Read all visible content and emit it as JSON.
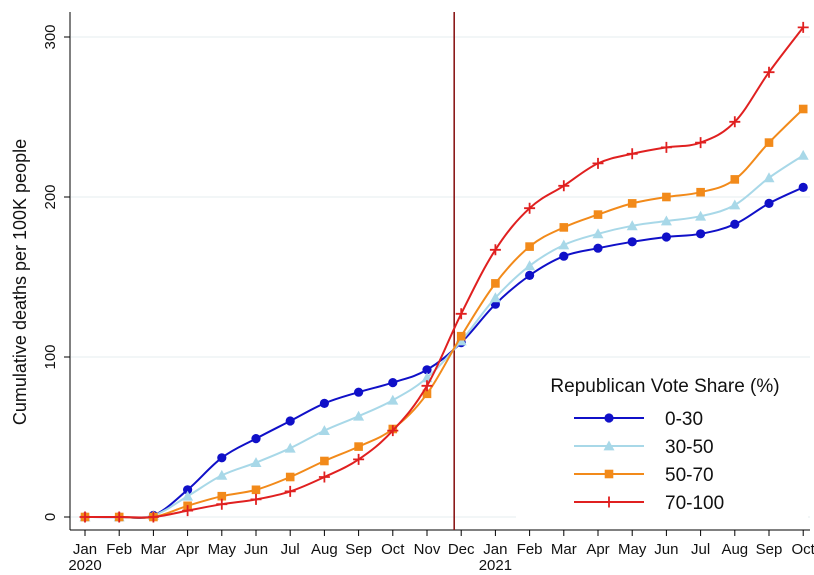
{
  "chart_data": {
    "type": "line",
    "title": "",
    "xlabel": "",
    "ylabel": "Cumulative deaths per 100K people",
    "ylim": [
      0,
      300
    ],
    "yticks": [
      "0",
      "100",
      "200",
      "300"
    ],
    "categories": [
      "Jan",
      "Feb",
      "Mar",
      "Apr",
      "May",
      "Jun",
      "Jul",
      "Aug",
      "Sep",
      "Oct",
      "Nov",
      "Dec",
      "Jan",
      "Feb",
      "Mar",
      "Apr",
      "May",
      "Jun",
      "Jul",
      "Aug",
      "Sep",
      "Oct"
    ],
    "year_labels": [
      {
        "index": 0,
        "label": "2020"
      },
      {
        "index": 12,
        "label": "2021"
      }
    ],
    "grid": true,
    "vertical_marker": {
      "category_index": 11,
      "color": "#8b1a1a"
    },
    "legend": {
      "title": "Republican Vote Share (%)",
      "placement": "bottom-right"
    },
    "series": [
      {
        "name": "0-30",
        "color": "#1010c8",
        "marker": "circle",
        "values": [
          0,
          0,
          1,
          17,
          37,
          49,
          60,
          71,
          78,
          84,
          92,
          109,
          133,
          151,
          163,
          168,
          172,
          175,
          177,
          183,
          196,
          206
        ]
      },
      {
        "name": "30-50",
        "color": "#a8d8e8",
        "marker": "triangle",
        "values": [
          0,
          0,
          1,
          13,
          26,
          34,
          43,
          54,
          63,
          73,
          87,
          110,
          137,
          157,
          170,
          177,
          182,
          185,
          188,
          195,
          212,
          226
        ]
      },
      {
        "name": "50-70",
        "color": "#f28a1a",
        "marker": "square",
        "values": [
          0,
          0,
          0,
          7,
          13,
          17,
          25,
          35,
          44,
          55,
          77,
          113,
          146,
          169,
          181,
          189,
          196,
          200,
          203,
          211,
          234,
          255
        ]
      },
      {
        "name": "70-100",
        "color": "#e02020",
        "marker": "plus",
        "values": [
          0,
          0,
          0,
          4,
          8,
          11,
          16,
          25,
          36,
          54,
          82,
          127,
          167,
          193,
          207,
          221,
          227,
          231,
          234,
          247,
          278,
          306
        ]
      }
    ]
  }
}
